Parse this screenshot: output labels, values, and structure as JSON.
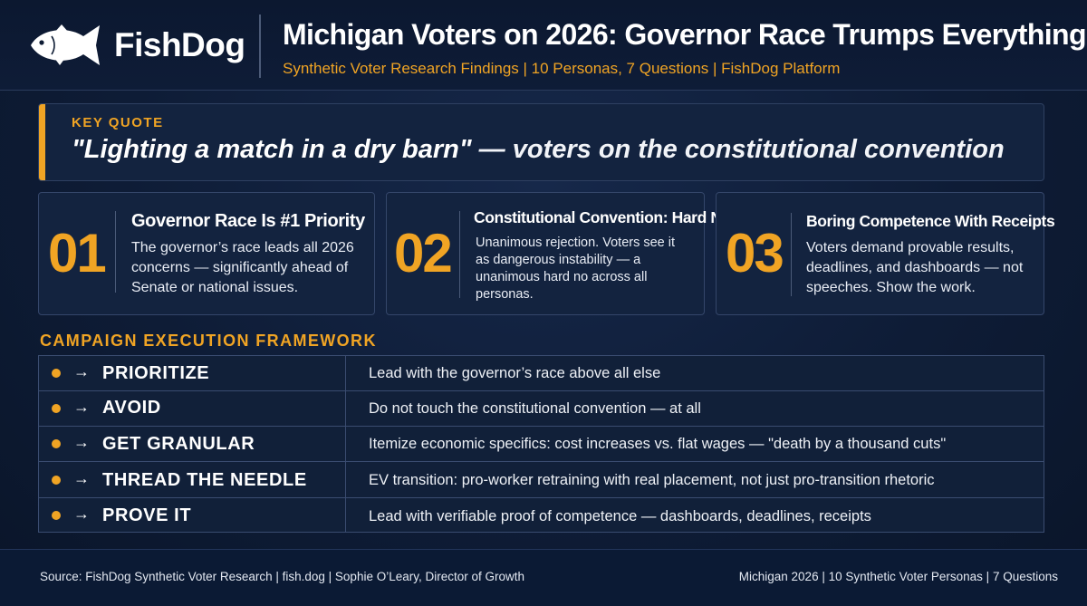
{
  "header": {
    "brand": "FishDog",
    "title": "Michigan  Voters on 2026: Governor Race Trumps Everything",
    "subtitle": "Synthetic Voter Research Findings | 10 Personas, 7 Questions | FishDog Platform",
    "logo_icon": "fish-icon"
  },
  "key_quote": {
    "label": "KEY QUOTE",
    "quote": "\"Lighting a match in a dry barn\"",
    "attribution": " — voters on the constitutional convention"
  },
  "cards": [
    {
      "number": "01",
      "title": "Governor Race Is #1 Priority",
      "body": "The governor’s race leads all 2026 concerns — significantly ahead of Senate or national issues."
    },
    {
      "number": "02",
      "title": "Constitutional Convention: Hard No",
      "body": "Unanimous rejection. Voters see it as dangerous instability — a unanimous hard no across all personas."
    },
    {
      "number": "03",
      "title": "Boring Competence With Receipts",
      "body": "Voters demand provable results, deadlines, and dashboards — not speeches. Show the work."
    }
  ],
  "framework": {
    "label": "CAMPAIGN EXECUTION FRAMEWORK",
    "arrow": "→",
    "rows": [
      {
        "name": "PRIORITIZE",
        "desc": "Lead with the governor’s race above all else"
      },
      {
        "name": "AVOID",
        "desc": "Do not touch the constitutional convention — at all"
      },
      {
        "name": "GET GRANULAR",
        "desc": "Itemize economic specifics: cost increases vs. flat wages — \"death by a thousand cuts\""
      },
      {
        "name": "THREAD THE NEEDLE",
        "desc": "EV transition: pro-worker retraining with real placement, not just pro-transition rhetoric"
      },
      {
        "name": "PROVE IT",
        "desc": "Lead with verifiable proof of competence — dashboards, deadlines, receipts"
      }
    ]
  },
  "footer": {
    "left": "Source: FishDog Synthetic Voter Research  |  fish.dog  |  Sophie O’Leary, Director of Growth",
    "right": "Michigan 2026  |  10 Synthetic Voter Personas  |  7 Questions"
  },
  "colors": {
    "accent": "#f0a424",
    "background": "#0e1c36",
    "panel": "#13233f"
  }
}
